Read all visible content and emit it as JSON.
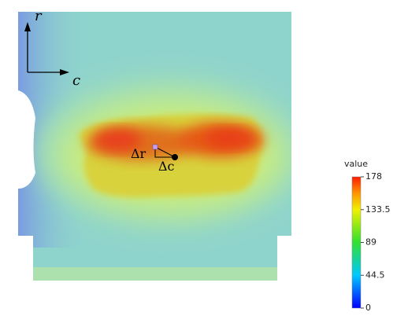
{
  "axes_labels": {
    "vertical": "r",
    "horizontal": "c"
  },
  "annotations": {
    "delta_r": "Δr",
    "delta_c": "Δc"
  },
  "colorbar": {
    "title": "value",
    "range": [
      0,
      178
    ],
    "ticks": [
      0,
      44.5,
      89,
      133.5,
      178
    ]
  }
}
